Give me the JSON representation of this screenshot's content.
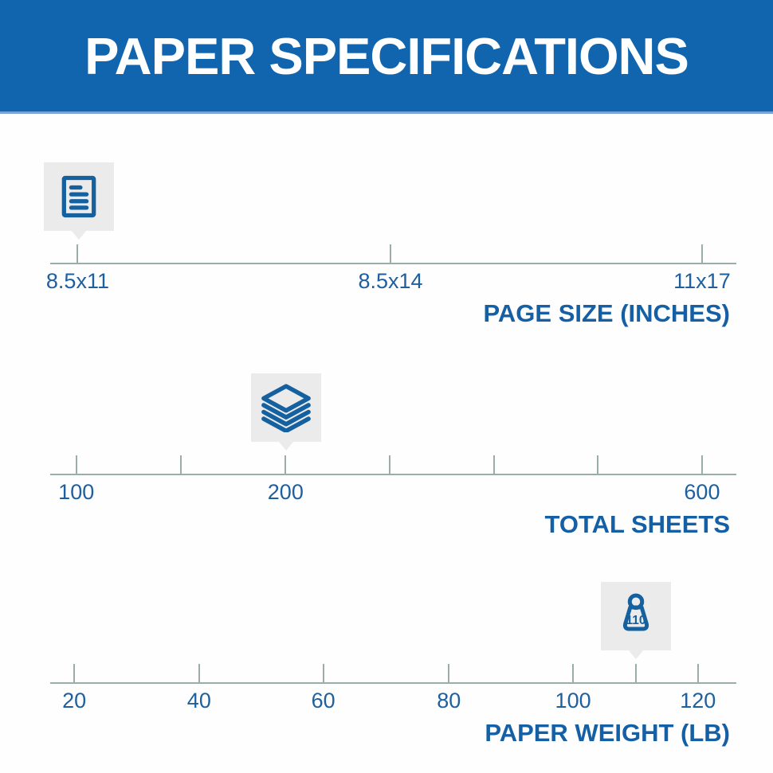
{
  "header": {
    "title": "PAPER SPECIFICATIONS"
  },
  "colors": {
    "banner_bg": "#1065ae",
    "banner_edge": "#7ba4d7",
    "banner_text": "#ffffff",
    "icon_blue": "#15609f",
    "tick_label_blue": "#1d5f9f",
    "title_blue": "#1560a4",
    "axis_line_gray": "#9bada7",
    "marker_square_bg": "#ebebeb",
    "page_bg": "#ffffff"
  },
  "chart_data": {
    "type": "scale",
    "description": "Paper specification infographic: three horizontal tick scales, each with a gray callout marker highlighting the product's value",
    "scales": [
      {
        "name": "page-size",
        "title": "PAGE SIZE (INCHES)",
        "selected_value": "8.5x11",
        "marker": {
          "pos": 0.042,
          "icon": "document-icon",
          "value": "8.5x11"
        },
        "ticks": [
          {
            "pos": 0.04,
            "label": "8.5x11"
          },
          {
            "pos": 0.496,
            "label": "8.5x14"
          },
          {
            "pos": 0.95,
            "label": "11x17"
          }
        ]
      },
      {
        "name": "total-sheets",
        "title": "TOTAL SHEETS",
        "selected_value": "200",
        "marker": {
          "pos": 0.344,
          "icon": "sheets-stack-icon",
          "value": "200"
        },
        "ticks": [
          {
            "pos": 0.038,
            "label": "100"
          },
          {
            "pos": 0.19,
            "label": ""
          },
          {
            "pos": 0.343,
            "label": "200"
          },
          {
            "pos": 0.495,
            "label": ""
          },
          {
            "pos": 0.647,
            "label": ""
          },
          {
            "pos": 0.798,
            "label": ""
          },
          {
            "pos": 0.95,
            "label": "600"
          }
        ]
      },
      {
        "name": "paper-weight",
        "title": "PAPER WEIGHT (LB)",
        "selected_value": "110",
        "marker": {
          "pos": 0.854,
          "icon": "weight-icon",
          "value": "110",
          "icon_text": "110"
        },
        "ticks": [
          {
            "pos": 0.035,
            "label": "20"
          },
          {
            "pos": 0.217,
            "label": "40"
          },
          {
            "pos": 0.398,
            "label": "60"
          },
          {
            "pos": 0.581,
            "label": "80"
          },
          {
            "pos": 0.762,
            "label": "100"
          },
          {
            "pos": 0.854,
            "label": ""
          },
          {
            "pos": 0.944,
            "label": "120"
          }
        ]
      }
    ]
  }
}
